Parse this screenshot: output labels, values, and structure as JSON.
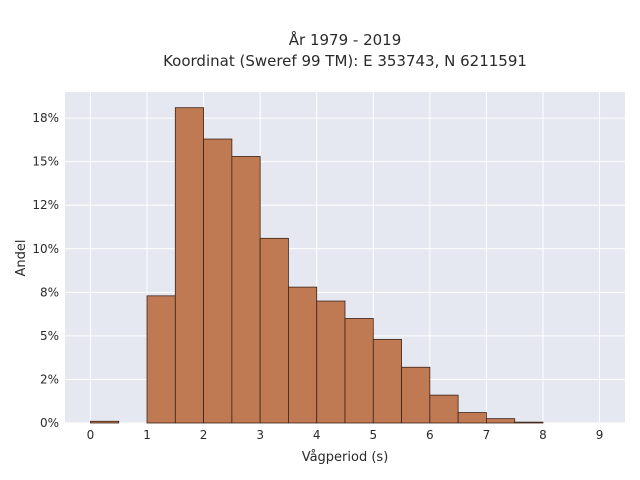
{
  "chart_data": {
    "type": "bar",
    "title": "År 1979 - 2019",
    "subtitle": "Koordinat (Sweref 99 TM): E 353743, N 6211591",
    "xlabel": "Vågperiod (s)",
    "ylabel": "Andel",
    "bin_edges": [
      0,
      0.5,
      1,
      1.5,
      2,
      2.5,
      3,
      3.5,
      4,
      4.5,
      5,
      5.5,
      6,
      6.5,
      7,
      7.5,
      8,
      8.5
    ],
    "values": [
      0.1,
      0.0,
      7.3,
      18.1,
      16.3,
      15.3,
      10.6,
      7.8,
      7.0,
      6.0,
      4.8,
      3.2,
      1.6,
      0.6,
      0.25,
      0.05,
      0.0
    ],
    "xticks": [
      0,
      1,
      2,
      3,
      4,
      5,
      6,
      7,
      8,
      9
    ],
    "yticks": [
      0,
      2.5,
      5,
      7.5,
      10,
      12.5,
      15,
      17.5
    ],
    "ytick_labels": [
      "0%",
      "2%",
      "5%",
      "8%",
      "10%",
      "12%",
      "15%",
      "18%"
    ],
    "xlim": [
      -0.45,
      9.45
    ],
    "ylim": [
      0,
      19
    ],
    "grid": true,
    "colors": {
      "plot_background": "#e5e8f1",
      "bar_fill": "#bf7a53",
      "bar_edge": "#3d2418",
      "grid": "#ffffff"
    }
  }
}
